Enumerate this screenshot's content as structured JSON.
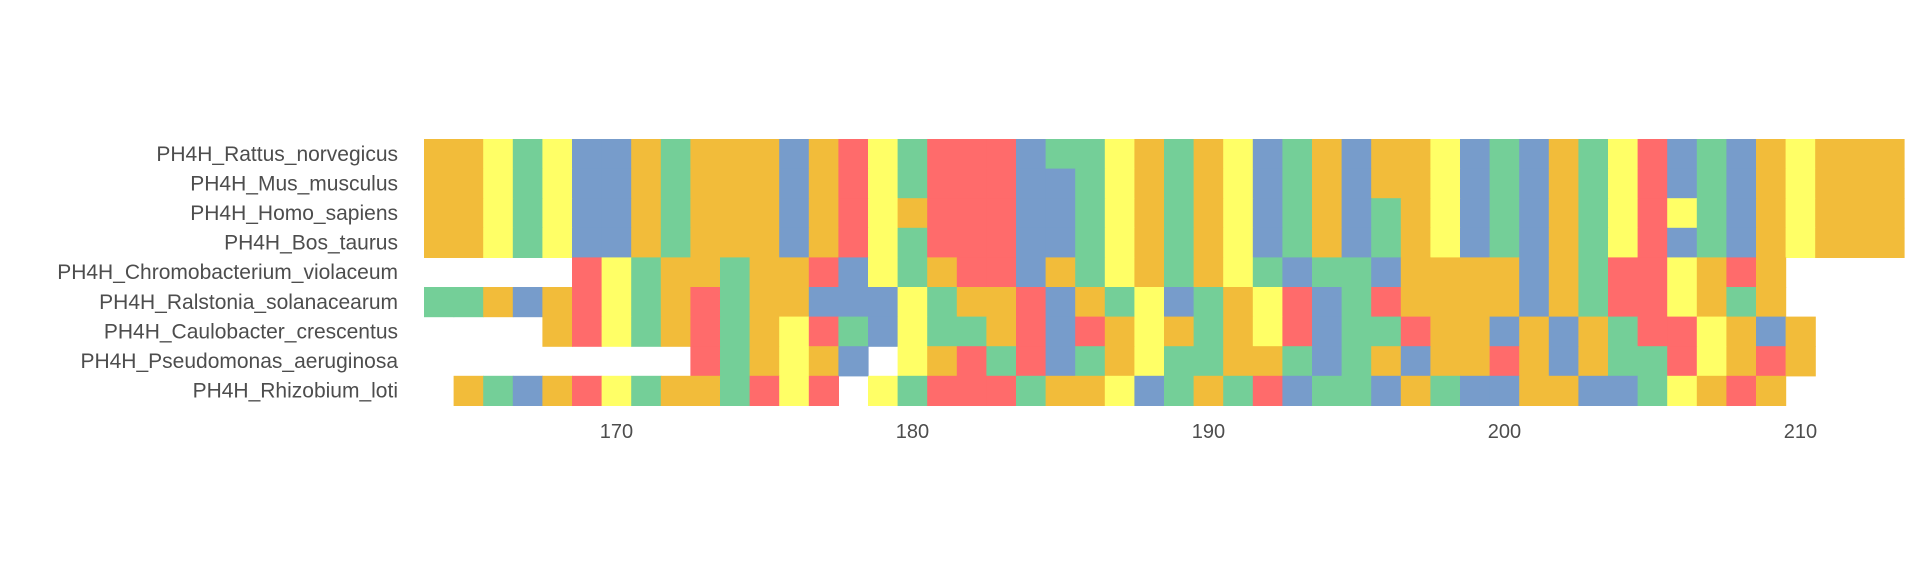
{
  "chart_data": {
    "type": "heatmap",
    "x_range": [
      164,
      213
    ],
    "x_ticks": [
      170,
      180,
      190,
      200,
      210
    ],
    "legend": "none",
    "grid": false,
    "palette": {
      "O": "#F2BC3A",
      "Y": "#FFFF66",
      "G": "#74CF98",
      "B": "#779CCB",
      "R": "#FF6B6B"
    },
    "sequences": [
      {
        "name": "PH4H_Rattus_norvegicus",
        "start": 164,
        "cells": "OOYGYBBOGOOOBORYGRRRBGGYOGOYBGOBOOYBGBOGYRBGBOYOOO"
      },
      {
        "name": "PH4H_Mus_musculus",
        "start": 164,
        "cells": "OOYGYBBOGOOOBORYGRRRBBGYOGOYBGOBOOYBGBOGYRBGBOYOOO"
      },
      {
        "name": "PH4H_Homo_sapiens",
        "start": 164,
        "cells": "OOYGYBBOGOOOBORYORRRBBGYOGOYBGOBGOYBGBOGYRYGBOYOOO"
      },
      {
        "name": "PH4H_Bos_taurus",
        "start": 164,
        "cells": "OOYGYBBOGOOOBORYGRRRBBGYOGOYBGOBGOYBGBOGYRBGBOYOOO"
      },
      {
        "name": "PH4H_Chromobacterium_violaceum",
        "start": 169,
        "cells": "RYGOOGOORBYGORRBOGYOGOYGBGGBOOOOBOGRRYORO"
      },
      {
        "name": "PH4H_Ralstonia_solanacearum",
        "start": 164,
        "cells": "GGOBORYGORGOOBBBYGOORBOGYBGOYRBGROOOOBOGRRYOGO"
      },
      {
        "name": "PH4H_Caulobacter_crescentus",
        "start": 168,
        "cells": "ORYGORGOYRGBYGGORBROYOGOYRBGGROOBOBOGRRYOBO"
      },
      {
        "name": "PH4H_Pseudomonas_aeruginosa",
        "start": 173,
        "cells": "RGOYOB_YORGRBGOYGGOOGBGOBOOROBOGGRYORO"
      },
      {
        "name": "PH4H_Rhizobium_loti",
        "start": 165,
        "cells": "OGBORYGOOGRYR_YGRRRGOOYBGOGRBGGBOGBBOOBBGYORO"
      }
    ]
  }
}
